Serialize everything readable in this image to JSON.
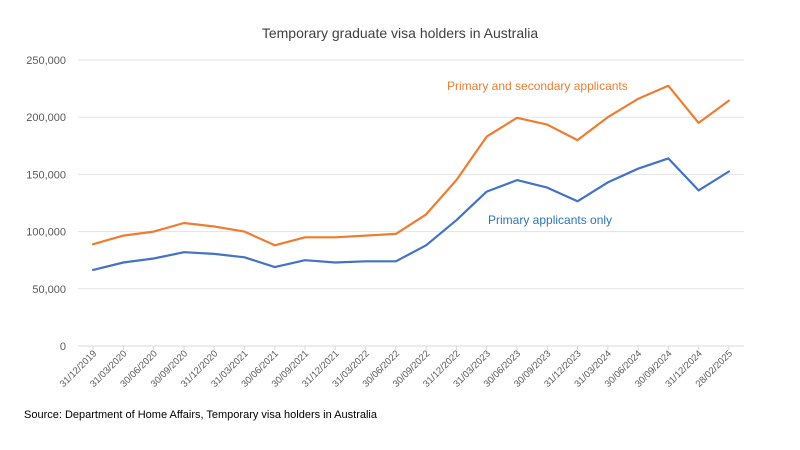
{
  "source": "Source: Department of Home Affairs, Temporary visa holders in Australia",
  "chart_data": {
    "type": "line",
    "title": "Temporary graduate visa holders in Australia",
    "xlabel": "",
    "ylabel": "",
    "ylim": [
      0,
      250000
    ],
    "yticks": [
      0,
      50000,
      100000,
      150000,
      200000,
      250000
    ],
    "ytick_labels": [
      "0",
      "50,000",
      "100,000",
      "150,000",
      "200,000",
      "250,000"
    ],
    "grid": true,
    "legend": "inline labels",
    "categories": [
      "31/12/2019",
      "31/03/2020",
      "30/06/2020",
      "30/09/2020",
      "31/12/2020",
      "31/03/2021",
      "30/06/2021",
      "30/09/2021",
      "31/12/2021",
      "31/03/2022",
      "30/06/2022",
      "30/09/2022",
      "31/12/2022",
      "31/03/2023",
      "30/06/2023",
      "30/09/2023",
      "31/12/2023",
      "31/03/2024",
      "30/06/2024",
      "30/09/2024",
      "31/12/2024",
      "28/02/2025"
    ],
    "series": [
      {
        "name": "Primary and secondary applicants",
        "color": "#ED7D31",
        "values": [
          89000,
          96500,
          100000,
          107500,
          104500,
          100000,
          88000,
          95000,
          95000,
          96500,
          98000,
          115000,
          145000,
          183000,
          199500,
          193500,
          180000,
          200000,
          216000,
          227500,
          195000,
          214500
        ]
      },
      {
        "name": "Primary applicants only",
        "color": "#4472C4",
        "values": [
          66500,
          73000,
          76500,
          82000,
          80500,
          77500,
          69000,
          75000,
          73000,
          74000,
          74000,
          88000,
          110000,
          135000,
          145000,
          138500,
          126500,
          143000,
          155000,
          164000,
          136000,
          152500
        ]
      }
    ],
    "series_labels": [
      {
        "text": "Primary and secondary applicants",
        "color": "#ED7D31"
      },
      {
        "text": "Primary applicants only",
        "color": "#2E75B6"
      }
    ]
  }
}
